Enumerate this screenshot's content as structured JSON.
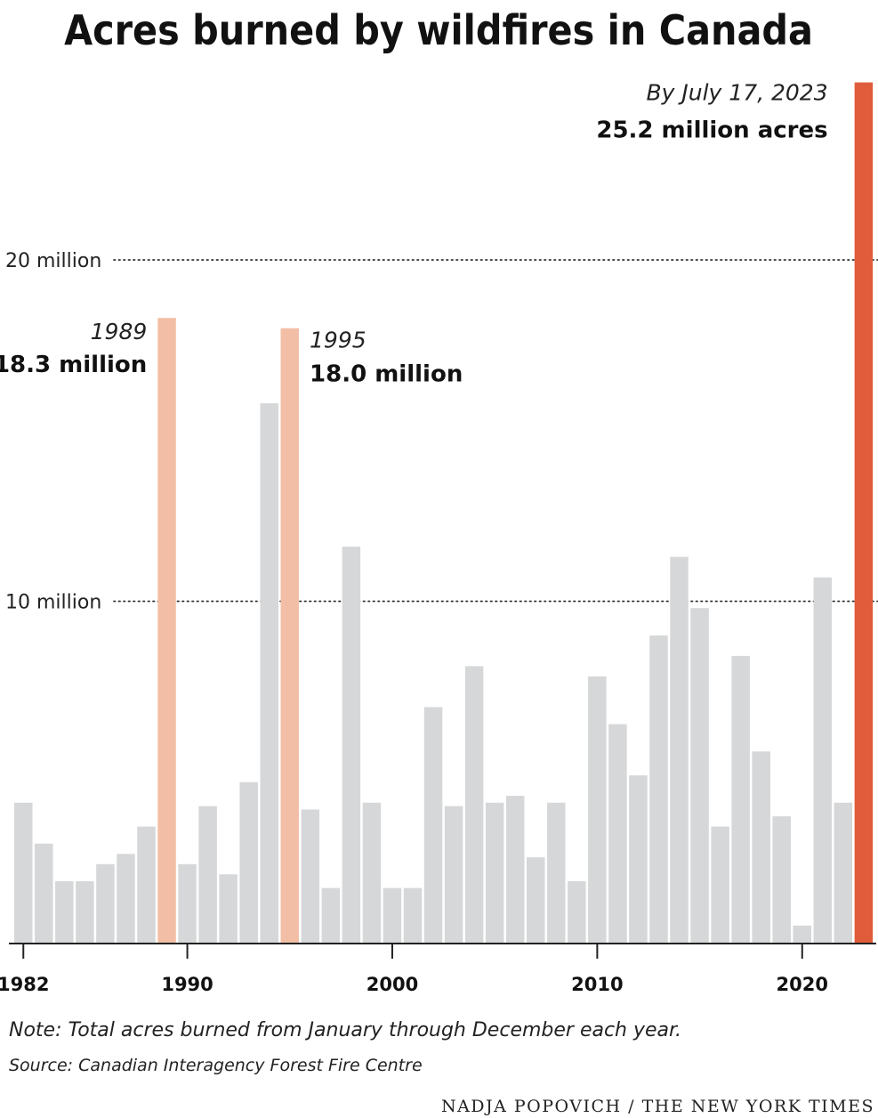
{
  "chart_data": {
    "type": "bar",
    "title": "Acres burned by wildfires in Canada",
    "ylabel": "",
    "xlabel": "",
    "ylim": [
      0,
      25.2
    ],
    "y_unit": "million acres",
    "grid": "horizontal dotted lines at 10 and 20 million",
    "gridlines": [
      {
        "value": 10,
        "label": "10 million"
      },
      {
        "value": 20,
        "label": "20 million"
      }
    ],
    "x_ticks": [
      {
        "year": 1982,
        "label": "1982"
      },
      {
        "year": 1990,
        "label": "1990"
      },
      {
        "year": 2000,
        "label": "2000"
      },
      {
        "year": 2010,
        "label": "2010"
      },
      {
        "year": 2020,
        "label": "2020"
      }
    ],
    "categories": [
      1982,
      1983,
      1984,
      1985,
      1986,
      1987,
      1988,
      1989,
      1990,
      1991,
      1992,
      1993,
      1994,
      1995,
      1996,
      1997,
      1998,
      1999,
      2000,
      2001,
      2002,
      2003,
      2004,
      2005,
      2006,
      2007,
      2008,
      2009,
      2010,
      2011,
      2012,
      2013,
      2014,
      2015,
      2016,
      2017,
      2018,
      2019,
      2020,
      2021,
      2022,
      2023
    ],
    "values": [
      4.1,
      2.9,
      1.8,
      1.8,
      2.3,
      2.6,
      3.4,
      18.3,
      2.3,
      4.0,
      2.0,
      4.7,
      15.8,
      18.0,
      3.9,
      1.6,
      11.6,
      4.1,
      1.6,
      1.6,
      6.9,
      4.0,
      8.1,
      4.1,
      4.3,
      2.5,
      4.1,
      1.8,
      7.8,
      6.4,
      4.9,
      9.0,
      11.3,
      9.8,
      3.4,
      8.4,
      5.6,
      3.7,
      0.5,
      10.7,
      4.1,
      25.2
    ],
    "highlights": [
      {
        "year": 1989,
        "color": "#f2bfa6"
      },
      {
        "year": 1995,
        "color": "#f2bfa6"
      },
      {
        "year": 2023,
        "color": "#e05c3a"
      }
    ],
    "base_color": "#d6d7d8",
    "annotations": [
      {
        "year": 1989,
        "date_label": "1989",
        "value_label": "18.3 million"
      },
      {
        "year": 1995,
        "date_label": "1995",
        "value_label": "18.0 million"
      },
      {
        "year": 2023,
        "date_label": "By July 17, 2023",
        "value_label": "25.2 million acres"
      }
    ]
  },
  "note": "Note: Total acres burned from January through December each year.",
  "source": "Source: Canadian Interagency Forest Fire Centre",
  "credit": "NADJA POPOVICH / THE NEW YORK TIMES"
}
